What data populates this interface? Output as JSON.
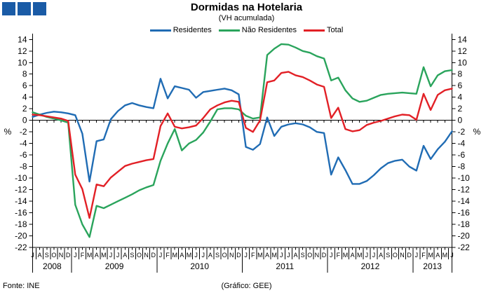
{
  "header": {
    "title": "Dormidas na Hotelaria",
    "subtitle": "(VH acumulada)"
  },
  "logo": {
    "color": "#1a5ba6"
  },
  "legend": [
    {
      "id": "residentes",
      "label": "Residentes",
      "color": "#206cb4"
    },
    {
      "id": "nao-residentes",
      "label": "Não Residentes",
      "color": "#2aa45c"
    },
    {
      "id": "total",
      "label": "Total",
      "color": "#e22026"
    }
  ],
  "footer": {
    "source": "Fonte: INE",
    "credit": "(Gráfico: GEE)"
  },
  "chart_data": {
    "type": "line",
    "title": "Dormidas na Hotelaria",
    "subtitle": "(VH acumulada)",
    "ylabel": "%",
    "ylabel_right": "%",
    "ylim": [
      -22,
      14
    ],
    "y_step": 2,
    "grid": "zero-line-only",
    "legend_position": "top",
    "years": [
      {
        "year": "2008",
        "months": [
          "J",
          "A",
          "S",
          "O",
          "N",
          "D"
        ]
      },
      {
        "year": "2009",
        "months": [
          "J",
          "F",
          "M",
          "A",
          "M",
          "J",
          "J",
          "A",
          "S",
          "O",
          "N",
          "D"
        ]
      },
      {
        "year": "2010",
        "months": [
          "J",
          "F",
          "M",
          "A",
          "M",
          "J",
          "J",
          "A",
          "S",
          "O",
          "N",
          "D"
        ]
      },
      {
        "year": "2011",
        "months": [
          "J",
          "F",
          "M",
          "A",
          "M",
          "J",
          "J",
          "A",
          "S",
          "O",
          "N",
          "D"
        ]
      },
      {
        "year": "2012",
        "months": [
          "J",
          "F",
          "M",
          "A",
          "M",
          "J",
          "J",
          "A",
          "S",
          "O",
          "N",
          "D"
        ]
      },
      {
        "year": "2013",
        "months": [
          "J",
          "F",
          "M",
          "A",
          "M",
          "J"
        ]
      }
    ],
    "series": [
      {
        "id": "residentes",
        "name": "Residentes",
        "color": "#206cb4",
        "values": [
          0.6,
          1.0,
          1.3,
          1.5,
          1.4,
          1.2,
          0.9,
          -2.3,
          -10.6,
          -3.6,
          -3.3,
          0.2,
          1.6,
          2.6,
          3.0,
          2.6,
          2.3,
          2.1,
          7.2,
          3.8,
          5.9,
          5.6,
          5.3,
          3.9,
          4.9,
          5.1,
          5.3,
          5.5,
          5.2,
          4.5,
          -4.6,
          -5.1,
          -4.1,
          0.5,
          -2.7,
          -1.1,
          -0.7,
          -0.5,
          -0.7,
          -1.2,
          -2.0,
          -2.2,
          -9.4,
          -6.4,
          -8.6,
          -11.0,
          -11.0,
          -10.5,
          -9.5,
          -8.3,
          -7.4,
          -7.0,
          -6.8,
          -8.0,
          -8.7,
          -4.4,
          -6.7,
          -5.0,
          -3.7,
          -1.9
        ]
      },
      {
        "id": "nao-residentes",
        "name": "Não Residentes",
        "color": "#2aa45c",
        "values": [
          1.4,
          1.0,
          0.6,
          0.3,
          0.0,
          -0.4,
          -14.6,
          -18.0,
          -20.2,
          -14.8,
          -15.2,
          -14.6,
          -14.0,
          -13.4,
          -12.8,
          -12.1,
          -11.6,
          -11.2,
          -7.0,
          -4.0,
          -1.5,
          -5.2,
          -4.0,
          -3.4,
          -2.1,
          -0.2,
          1.9,
          2.1,
          2.1,
          1.9,
          0.8,
          0.3,
          0.5,
          11.3,
          12.4,
          13.2,
          13.1,
          12.6,
          12.0,
          11.7,
          11.1,
          10.7,
          6.9,
          7.4,
          5.2,
          3.8,
          3.2,
          3.4,
          3.9,
          4.4,
          4.6,
          4.7,
          4.8,
          4.7,
          4.6,
          9.2,
          5.9,
          7.8,
          8.5,
          8.7
        ]
      },
      {
        "id": "total",
        "name": "Total",
        "color": "#e22026",
        "values": [
          1.0,
          0.9,
          0.7,
          0.5,
          0.3,
          -0.1,
          -9.4,
          -11.9,
          -16.9,
          -11.1,
          -11.4,
          -9.9,
          -8.9,
          -7.9,
          -7.5,
          -7.2,
          -6.9,
          -6.7,
          -1.0,
          1.2,
          -1.1,
          -1.4,
          -1.2,
          -0.9,
          0.4,
          1.9,
          2.6,
          3.1,
          3.4,
          3.2,
          -1.3,
          -2.0,
          0.0,
          6.6,
          6.9,
          8.2,
          8.4,
          7.8,
          7.5,
          6.9,
          6.2,
          5.8,
          0.4,
          2.2,
          -1.5,
          -1.9,
          -1.7,
          -0.8,
          -0.4,
          -0.1,
          0.3,
          0.7,
          1.0,
          0.9,
          0.1,
          4.6,
          1.8,
          4.4,
          5.2,
          5.5
        ]
      }
    ]
  }
}
